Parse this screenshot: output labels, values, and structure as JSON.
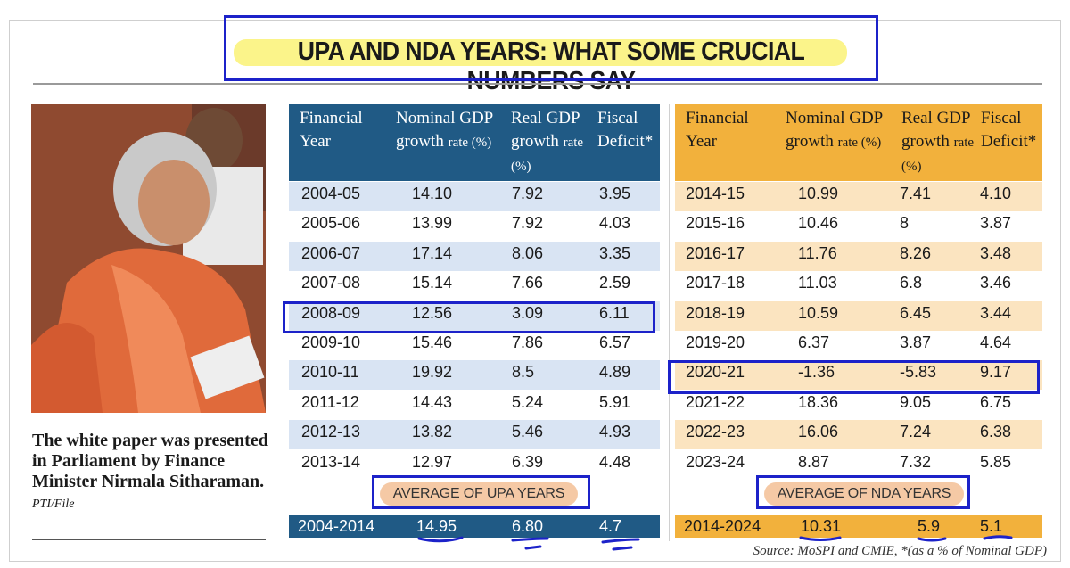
{
  "title": "UPA AND NDA YEARS: WHAT SOME CRUCIAL NUMBERS SAY",
  "caption": {
    "text": "The white paper was presented in Parliament by Finance Minister Nirmala Sitharaman.",
    "credit": "PTI/File"
  },
  "headers": {
    "year": "Financial Year",
    "nominal": "Nominal GDP growth",
    "real": "Real GDP growth",
    "rate_pct": "rate (%)",
    "fiscal": "Fiscal Deficit*"
  },
  "upa": {
    "rows": [
      [
        "2004-05",
        "14.10",
        "7.92",
        "3.95"
      ],
      [
        "2005-06",
        "13.99",
        "7.92",
        "4.03"
      ],
      [
        "2006-07",
        "17.14",
        "8.06",
        "3.35"
      ],
      [
        "2007-08",
        "15.14",
        "7.66",
        "2.59"
      ],
      [
        "2008-09",
        "12.56",
        "3.09",
        "6.11"
      ],
      [
        "2009-10",
        "15.46",
        "7.86",
        "6.57"
      ],
      [
        "2010-11",
        "19.92",
        "8.5",
        "4.89"
      ],
      [
        "2011-12",
        "14.43",
        "5.24",
        "5.91"
      ],
      [
        "2012-13",
        "13.82",
        "5.46",
        "4.93"
      ],
      [
        "2013-14",
        "12.97",
        "6.39",
        "4.48"
      ]
    ],
    "average_label": "AVERAGE OF UPA YEARS",
    "average": [
      "2004-2014",
      "14.95",
      "6.80",
      "4.7"
    ]
  },
  "nda": {
    "rows": [
      [
        "2014-15",
        "10.99",
        "7.41",
        "4.10"
      ],
      [
        "2015-16",
        "10.46",
        "8",
        "3.87"
      ],
      [
        "2016-17",
        "11.76",
        "8.26",
        "3.48"
      ],
      [
        "2017-18",
        "11.03",
        "6.8",
        "3.46"
      ],
      [
        "2018-19",
        "10.59",
        "6.45",
        "3.44"
      ],
      [
        "2019-20",
        "6.37",
        "3.87",
        "4.64"
      ],
      [
        "2020-21",
        "-1.36",
        "-5.83",
        "9.17"
      ],
      [
        "2021-22",
        "18.36",
        "9.05",
        "6.75"
      ],
      [
        "2022-23",
        "16.06",
        "7.24",
        "6.38"
      ],
      [
        "2023-24",
        "8.87",
        "7.32",
        "5.85"
      ]
    ],
    "average_label": "AVERAGE OF NDA YEARS",
    "average": [
      "2014-2024",
      "10.31",
      "5.9",
      "5.1"
    ]
  },
  "source": "Source: MoSPI and CMIE, *(as a % of Nominal GDP)",
  "colors": {
    "upa_header": "#205a85",
    "nda_header": "#f2b13c",
    "annotation": "#1c22c9"
  }
}
